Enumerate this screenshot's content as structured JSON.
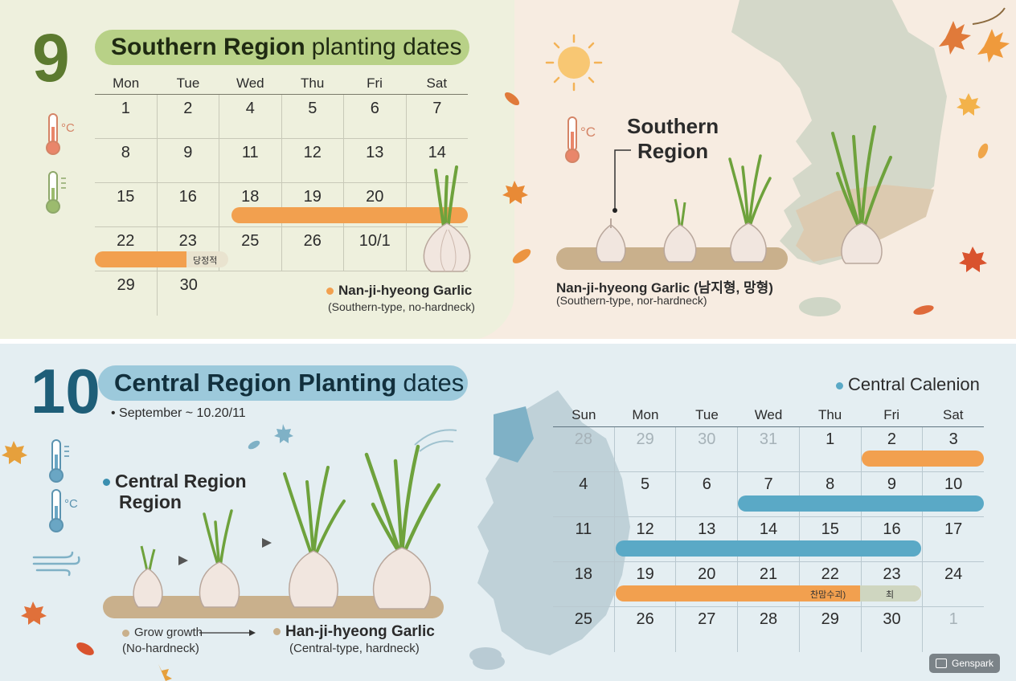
{
  "sept": {
    "month": "9",
    "title_bold": "Southern Region",
    "title_rest": "planting dates",
    "headers": [
      "Mon",
      "Tue",
      "Wed",
      "Thu",
      "Fri",
      "Sat"
    ],
    "rows": [
      [
        "1",
        "2",
        "4",
        "5",
        "6",
        "7"
      ],
      [
        "8",
        "9",
        "11",
        "12",
        "13",
        "14"
      ],
      [
        "15",
        "16",
        "18",
        "19",
        "20",
        ""
      ],
      [
        "22",
        "23",
        "25",
        "26",
        "10/1",
        ""
      ],
      [
        "29",
        "30",
        "",
        "",
        "",
        ""
      ]
    ],
    "bar_note": "당정적",
    "legend_title": "Nan-ji-hyeong Garlic",
    "legend_sub": "(Southern-type, no-hardneck)",
    "map_label_1": "Southern",
    "map_label_2": "Region",
    "map_legend_title": "Nan-ji-hyeong Garlic (남지형, 망형)",
    "map_legend_sub": "(Southern-type, nor-hardneck)",
    "temp_unit": "°C",
    "colors": {
      "accent": "#f2a04f",
      "title_bg": "#b8d187",
      "month": "#5c7a2f"
    }
  },
  "oct": {
    "month": "10",
    "title_bold": "Central Region Planting",
    "title_rest": "dates",
    "date_range": "• September ~ 10.20/11",
    "side_label_1": "Central Region",
    "side_label_2": "Region",
    "grow_label": "Grow growth",
    "grow_sub": "(No-hardneck)",
    "legend_title": "Han-ji-hyeong Garlic",
    "legend_sub": "(Central-type, hardneck)",
    "calendar_caption": "Central Calenion",
    "headers": [
      "Sun",
      "Mon",
      "Tue",
      "Wed",
      "Thu",
      "Fri",
      "Sat"
    ],
    "rows": [
      [
        {
          "d": "28",
          "m": true
        },
        {
          "d": "29",
          "m": true
        },
        {
          "d": "30",
          "m": true
        },
        {
          "d": "31",
          "m": true
        },
        {
          "d": "1"
        },
        {
          "d": "2"
        },
        {
          "d": "3"
        }
      ],
      [
        {
          "d": "4"
        },
        {
          "d": "5"
        },
        {
          "d": "6"
        },
        {
          "d": "7"
        },
        {
          "d": "8"
        },
        {
          "d": "9"
        },
        {
          "d": "10"
        }
      ],
      [
        {
          "d": "11"
        },
        {
          "d": "12"
        },
        {
          "d": "13"
        },
        {
          "d": "14"
        },
        {
          "d": "15"
        },
        {
          "d": "16"
        },
        {
          "d": "17"
        }
      ],
      [
        {
          "d": "18"
        },
        {
          "d": "19"
        },
        {
          "d": "20"
        },
        {
          "d": "21"
        },
        {
          "d": "22"
        },
        {
          "d": "23"
        },
        {
          "d": "24"
        }
      ],
      [
        {
          "d": "25"
        },
        {
          "d": "26"
        },
        {
          "d": "27"
        },
        {
          "d": "28"
        },
        {
          "d": "29"
        },
        {
          "d": "30"
        },
        {
          "d": "1",
          "m": true
        }
      ]
    ],
    "bar_note_1": "찬맘수괴)",
    "bar_note_2": "최",
    "temp_unit": "°C",
    "colors": {
      "accent_blue": "#5aa9c6",
      "accent_orange": "#f2a04f",
      "title_bg": "#9cc9db",
      "month": "#1e5e78"
    }
  },
  "watermark": "Genspark"
}
